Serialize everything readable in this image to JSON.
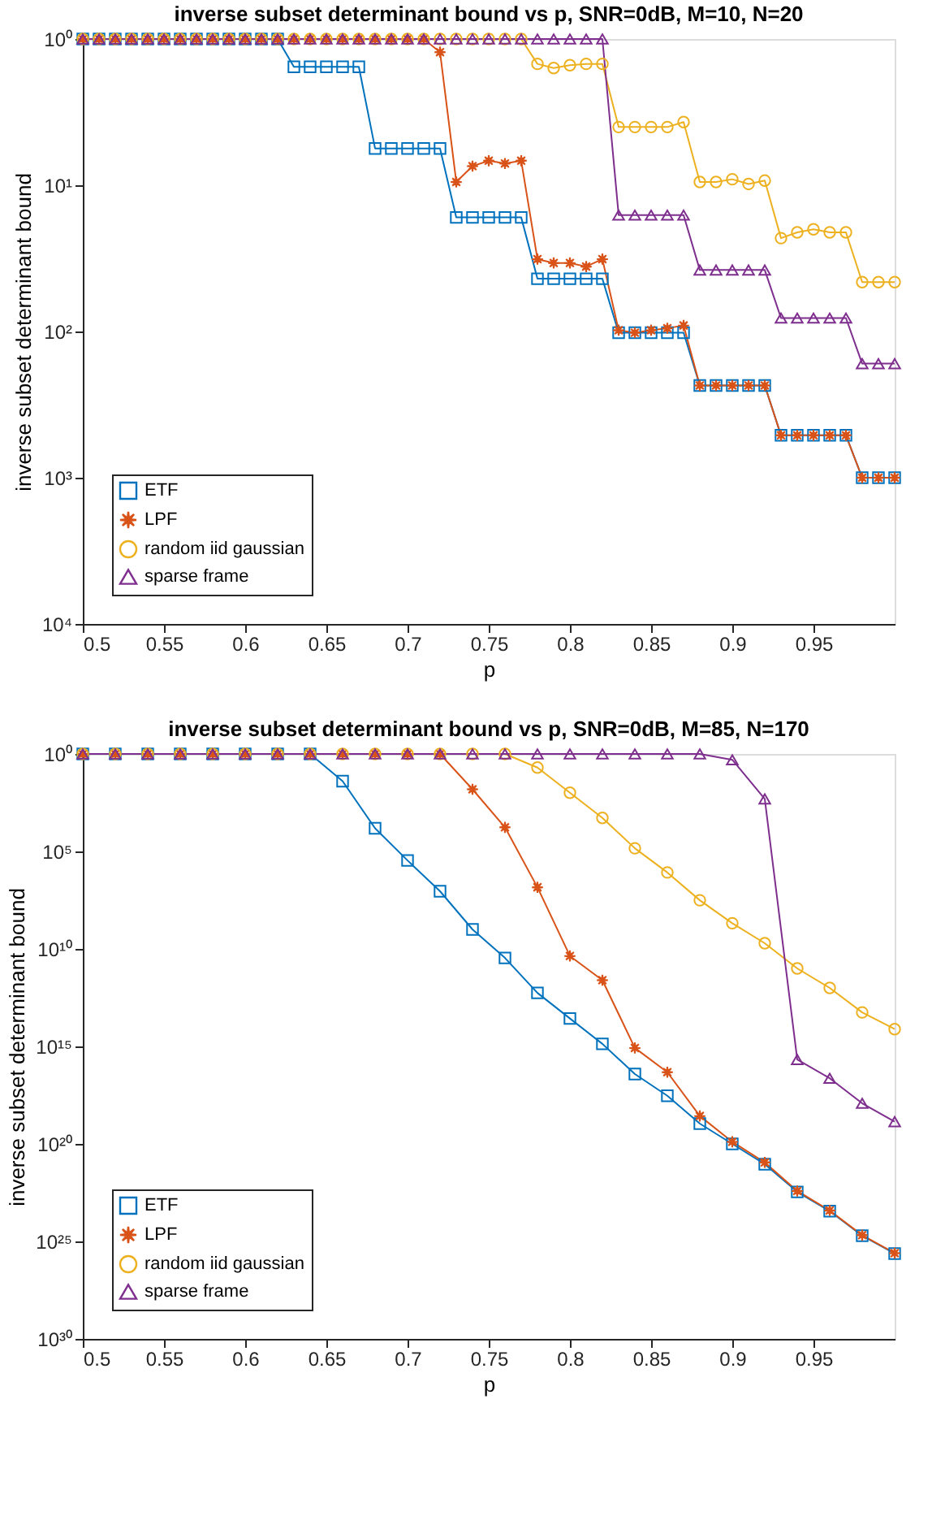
{
  "chart_data": [
    {
      "type": "line",
      "title": "inverse subset determinant bound vs p, SNR=0dB, M=10, N=20",
      "xlabel": "p",
      "ylabel": "inverse subset determinant bound",
      "x": [
        0.5,
        0.51,
        0.52,
        0.53,
        0.54,
        0.55,
        0.56,
        0.57,
        0.58,
        0.59,
        0.6,
        0.61,
        0.62,
        0.63,
        0.64,
        0.65,
        0.66,
        0.67,
        0.68,
        0.69,
        0.7,
        0.71,
        0.72,
        0.73,
        0.74,
        0.75,
        0.76,
        0.77,
        0.78,
        0.79,
        0.8,
        0.81,
        0.82,
        0.83,
        0.84,
        0.85,
        0.86,
        0.87,
        0.88,
        0.89,
        0.9,
        0.91,
        0.92,
        0.93,
        0.94,
        0.95,
        0.96,
        0.97,
        0.98,
        0.99,
        1.0
      ],
      "series": [
        {
          "name": "ETF",
          "color": "#0072bd",
          "marker": "square",
          "values": [
            1,
            1,
            1,
            1,
            1,
            1,
            1,
            1,
            1,
            1,
            1,
            1,
            1,
            1.55,
            1.55,
            1.55,
            1.55,
            1.55,
            5.6,
            5.6,
            5.6,
            5.6,
            5.6,
            16.6,
            16.6,
            16.6,
            16.6,
            16.6,
            43.6,
            43.6,
            43.6,
            43.6,
            43.6,
            102,
            102,
            102,
            102,
            102,
            234,
            234,
            234,
            234,
            234,
            513,
            513,
            513,
            513,
            513,
            1000,
            1000,
            1000
          ]
        },
        {
          "name": "LPF",
          "color": "#d95319",
          "marker": "star",
          "values": [
            1,
            1,
            1,
            1,
            1,
            1,
            1,
            1,
            1,
            1,
            1,
            1,
            1,
            1,
            1,
            1,
            1,
            1,
            1,
            1,
            1,
            1,
            1.23,
            9.5,
            7.4,
            6.8,
            7.1,
            6.8,
            32,
            34,
            34,
            36,
            32,
            98,
            102,
            98,
            95,
            91,
            234,
            234,
            234,
            234,
            234,
            513,
            513,
            513,
            513,
            513,
            1000,
            1000,
            1000
          ]
        },
        {
          "name": "random iid gaussian",
          "color": "#edb120",
          "marker": "circle",
          "values": [
            1,
            1,
            1,
            1,
            1,
            1,
            1,
            1,
            1,
            1,
            1,
            1,
            1,
            1,
            1,
            1,
            1,
            1,
            1,
            1,
            1,
            1,
            1,
            1,
            1,
            1,
            1,
            1,
            1.48,
            1.58,
            1.51,
            1.48,
            1.48,
            4.0,
            4.0,
            4.0,
            4.0,
            3.7,
            9.5,
            9.5,
            9.1,
            9.8,
            9.3,
            23,
            21,
            20,
            21,
            21,
            46,
            46,
            46
          ]
        },
        {
          "name": "sparse frame",
          "color": "#7e2f8e",
          "marker": "triangle",
          "values": [
            1,
            1,
            1,
            1,
            1,
            1,
            1,
            1,
            1,
            1,
            1,
            1,
            1,
            1,
            1,
            1,
            1,
            1,
            1,
            1,
            1,
            1,
            1,
            1,
            1,
            1,
            1,
            1,
            1,
            1,
            1,
            1,
            1,
            16,
            16,
            16,
            16,
            16,
            38,
            38,
            38,
            38,
            38,
            81,
            81,
            81,
            81,
            81,
            166,
            166,
            166
          ]
        }
      ],
      "xlim": [
        0.5,
        1.0
      ],
      "xticks": [
        0.5,
        0.55,
        0.6,
        0.65,
        0.7,
        0.75,
        0.8,
        0.85,
        0.9,
        0.95
      ],
      "ylim": [
        10000,
        1
      ],
      "log": true,
      "yticks": [
        {
          "value": 1,
          "label": "10⁰"
        },
        {
          "value": 10,
          "label": "10¹"
        },
        {
          "value": 100,
          "label": "10²"
        },
        {
          "value": 1000,
          "label": "10³"
        },
        {
          "value": 10000,
          "label": "10⁴"
        }
      ],
      "legend": "bottom left",
      "grid": false
    },
    {
      "type": "line",
      "title": "inverse subset determinant bound vs p, SNR=0dB, M=85, N=170",
      "xlabel": "p",
      "ylabel": "inverse subset determinant bound",
      "x": [
        0.5,
        0.52,
        0.54,
        0.56,
        0.58,
        0.6,
        0.62,
        0.64,
        0.66,
        0.68,
        0.7,
        0.72,
        0.74,
        0.76,
        0.78,
        0.8,
        0.82,
        0.84,
        0.86,
        0.88,
        0.9,
        0.92,
        0.94,
        0.96,
        0.98,
        1.0
      ],
      "series": [
        {
          "name": "ETF",
          "color": "#0072bd",
          "marker": "square",
          "values": [
            1,
            1,
            1,
            1,
            1,
            1,
            1,
            1,
            25,
            6500.0,
            290000.0,
            11000000.0,
            1000000000.0,
            29000000000.0,
            1800000000000.0,
            37000000000000.0,
            740000000000000.0,
            2.6e+16,
            3.4e+17,
            9.1e+18,
            1e+20,
            1.1e+21,
            2.9e+22,
            2.8e+23,
            5.1e+24,
            4.2e+25
          ]
        },
        {
          "name": "LPF",
          "color": "#d95319",
          "marker": "star",
          "values": [
            1,
            1,
            1,
            1,
            1,
            1,
            1,
            1,
            1,
            1,
            1,
            1,
            65,
            5800.0,
            6900000.0,
            23000000000.0,
            400000000000.0,
            1200000000000000.0,
            2.1e+16,
            3.7e+18,
            7.8e+19,
            8.9e+20,
            2.6e+22,
            2.6e+23,
            4.8e+24,
            4e+25
          ]
        },
        {
          "name": "random iid gaussian",
          "color": "#edb120",
          "marker": "circle",
          "values": [
            1,
            1,
            1,
            1,
            1,
            1,
            1,
            1,
            1,
            1,
            1,
            1,
            1,
            1,
            5.0,
            98,
            1900.0,
            69000.0,
            1200000.0,
            32000000.0,
            480000000.0,
            5100000000.0,
            100000000000.0,
            1000000000000.0,
            18000000000000.0,
            130000000000000.0
          ]
        },
        {
          "name": "sparse frame",
          "color": "#7e2f8e",
          "marker": "triangle",
          "values": [
            1,
            1,
            1,
            1,
            1,
            1,
            1,
            1,
            1,
            1,
            1,
            1,
            1,
            1,
            1,
            1,
            1,
            1,
            1,
            1,
            2.0,
            204,
            4700000000000000.0,
            4.3e+16,
            8.3e+17,
            7.2e+18
          ]
        }
      ],
      "xlim": [
        0.5,
        1.0
      ],
      "xticks": [
        0.5,
        0.55,
        0.6,
        0.65,
        0.7,
        0.75,
        0.8,
        0.85,
        0.9,
        0.95
      ],
      "ylim": [
        1e+30,
        1
      ],
      "log": true,
      "yticks": [
        {
          "value": 1,
          "label": "10⁰"
        },
        {
          "value": 100000.0,
          "label": "10⁵"
        },
        {
          "value": 10000000000.0,
          "label": "10¹⁰"
        },
        {
          "value": 1000000000000000.0,
          "label": "10¹⁵"
        },
        {
          "value": 1e+20,
          "label": "10²⁰"
        },
        {
          "value": 1e+25,
          "label": "10²⁵"
        },
        {
          "value": 1e+30,
          "label": "10³⁰"
        }
      ],
      "legend": "bottom left",
      "grid": false
    }
  ]
}
